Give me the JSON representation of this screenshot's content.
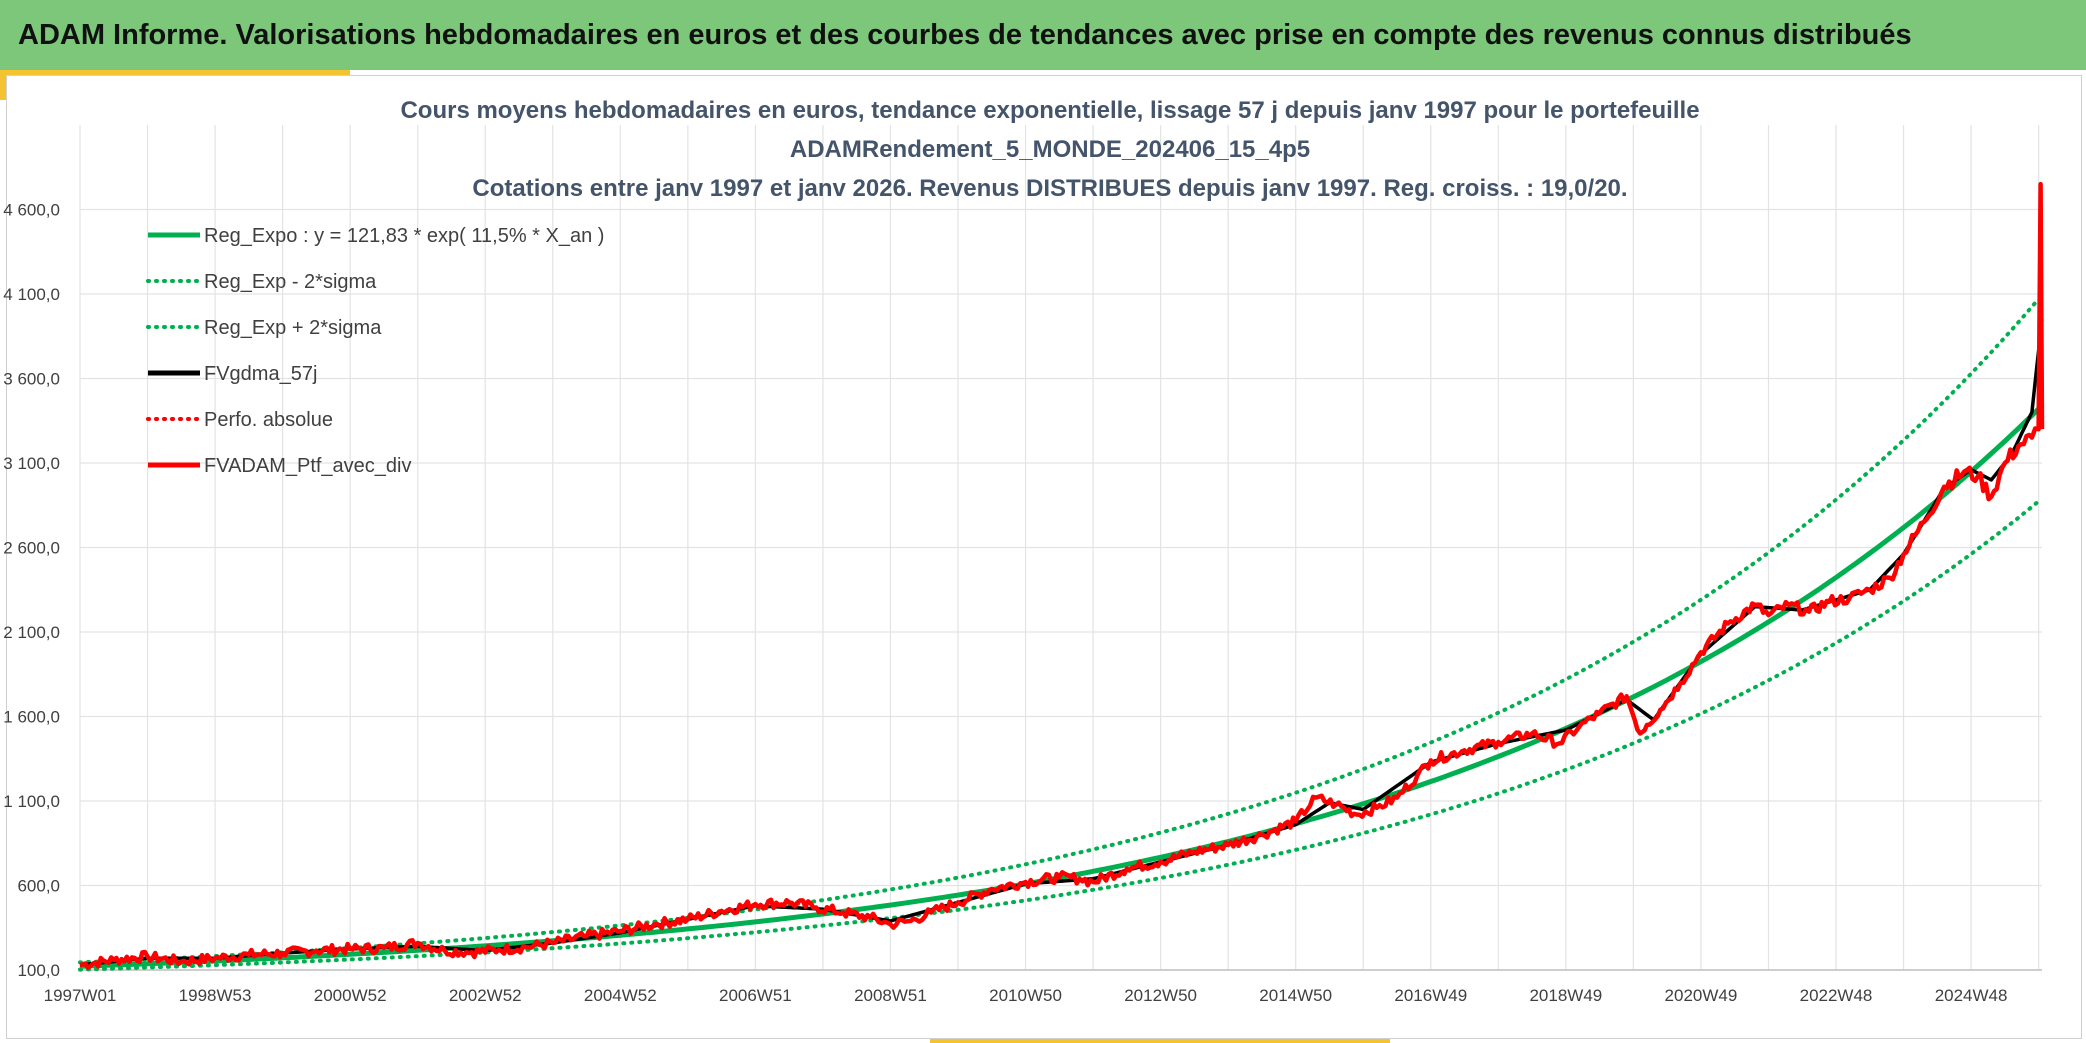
{
  "header": {
    "title": "ADAM Informe. Valorisations hebdomadaires en euros et des courbes de tendances avec prise en compte des revenus connus distribués"
  },
  "colors": {
    "banner": "#7dc77b",
    "accent": "#f4c430",
    "trend": "#00b050",
    "smooth": "#000000",
    "portfolio": "#ff0000",
    "title_text": "#44546a"
  },
  "chart_data": {
    "type": "line",
    "title_lines": [
      "Cours moyens hebdomadaires en euros, tendance exponentielle, lissage 57 j depuis janv 1997 pour le portefeuille",
      "ADAMRendement_5_MONDE_202406_15_4p5",
      "Cotations entre janv 1997 et janv 2026. Revenus DISTRIBUES depuis janv 1997. Reg. croiss. : 19,0/20."
    ],
    "xlabel": "",
    "ylabel": "",
    "x_tick_labels": [
      "1997W01",
      "1998W53",
      "2000W52",
      "2002W52",
      "2004W52",
      "2006W51",
      "2008W51",
      "2010W50",
      "2012W50",
      "2014W50",
      "2016W49",
      "2018W49",
      "2020W49",
      "2022W48",
      "2024W48"
    ],
    "x_tick_years": [
      1997,
      1999,
      2001,
      2003,
      2005,
      2007,
      2009,
      2011,
      2013,
      2015,
      2017,
      2019,
      2021,
      2023,
      2025
    ],
    "y_tick_labels": [
      "100,0",
      "600,0",
      "1 100,0",
      "1 600,0",
      "2 100,0",
      "2 600,0",
      "3 100,0",
      "3 600,0",
      "4 100,0",
      "4 600,0"
    ],
    "y_ticks": [
      100,
      600,
      1100,
      1600,
      2100,
      2600,
      3100,
      3600,
      4100,
      4600
    ],
    "xlim": [
      1997.0,
      2026.05
    ],
    "ylim": [
      100,
      5100
    ],
    "grid": true,
    "legend_position": "top-left",
    "legend": [
      {
        "label": "Reg_Expo : y = 121,83 * exp( 11,5% *  X_an )",
        "color": "#00b050",
        "style": "solid"
      },
      {
        "label": "Reg_Exp - 2*sigma",
        "color": "#00b050",
        "style": "dotted"
      },
      {
        "label": "Reg_Exp + 2*sigma",
        "color": "#00b050",
        "style": "dotted"
      },
      {
        "label": "FVgdma_57j",
        "color": "#000000",
        "style": "solid"
      },
      {
        "label": "Perfo. absolue",
        "color": "#ff0000",
        "style": "dotted"
      },
      {
        "label": "FVADAM_Ptf_avec_div",
        "color": "#ff0000",
        "style": "solid"
      }
    ],
    "regression": {
      "a": 121.83,
      "rate": 0.115,
      "lower_factor": 0.84,
      "upper_factor": 1.19
    },
    "series": [
      {
        "name": "FVADAM_Ptf_avec_div",
        "x": [
          1997.0,
          1997.5,
          1998.0,
          1998.5,
          1999.0,
          1999.5,
          2000.0,
          2000.5,
          2001.0,
          2001.5,
          2002.0,
          2002.4,
          2002.8,
          2003.2,
          2003.6,
          2004.0,
          2004.5,
          2005.0,
          2005.5,
          2006.0,
          2006.5,
          2007.0,
          2007.5,
          2007.9,
          2008.3,
          2008.7,
          2009.0,
          2009.3,
          2009.6,
          2010.0,
          2010.5,
          2011.0,
          2011.5,
          2011.8,
          2012.0,
          2012.5,
          2013.0,
          2013.5,
          2014.0,
          2014.5,
          2015.0,
          2015.3,
          2015.6,
          2015.9,
          2016.2,
          2016.5,
          2016.8,
          2017.0,
          2017.5,
          2018.0,
          2018.5,
          2018.9,
          2019.2,
          2019.5,
          2019.9,
          2020.1,
          2020.2,
          2020.4,
          2020.7,
          2021.0,
          2021.4,
          2021.8,
          2022.0,
          2022.3,
          2022.6,
          2022.9,
          2023.2,
          2023.5,
          2023.8,
          2024.0,
          2024.3,
          2024.6,
          2024.9,
          2025.1,
          2025.3,
          2025.5,
          2025.7,
          2025.9,
          2026.0,
          2026.03,
          2026.05
        ],
        "values": [
          130,
          160,
          180,
          150,
          170,
          190,
          200,
          215,
          225,
          230,
          260,
          215,
          205,
          220,
          235,
          260,
          300,
          330,
          370,
          400,
          450,
          490,
          500,
          470,
          440,
          410,
          370,
          390,
          440,
          500,
          580,
          620,
          650,
          640,
          620,
          700,
          740,
          800,
          840,
          900,
          980,
          1120,
          1080,
          1020,
          1060,
          1120,
          1250,
          1340,
          1400,
          1450,
          1500,
          1440,
          1540,
          1620,
          1720,
          1500,
          1550,
          1640,
          1800,
          1980,
          2150,
          2260,
          2200,
          2260,
          2220,
          2280,
          2300,
          2350,
          2420,
          2560,
          2750,
          2960,
          3050,
          3020,
          2900,
          3100,
          3200,
          3250,
          3300,
          4750,
          3300
        ]
      },
      {
        "name": "FVgdma_57j",
        "x": [
          1997.0,
          1998.0,
          1999.0,
          2000.0,
          2001.0,
          2002.0,
          2003.0,
          2004.0,
          2005.0,
          2006.0,
          2007.0,
          2008.0,
          2009.0,
          2010.0,
          2011.0,
          2012.0,
          2013.0,
          2014.0,
          2015.0,
          2015.5,
          2016.0,
          2017.0,
          2018.0,
          2019.0,
          2019.9,
          2020.3,
          2021.0,
          2021.8,
          2022.5,
          2023.5,
          2024.0,
          2024.6,
          2025.0,
          2025.3,
          2025.6,
          2025.9,
          2026.05
        ],
        "values": [
          130,
          170,
          170,
          200,
          225,
          240,
          215,
          260,
          320,
          400,
          480,
          460,
          390,
          500,
          610,
          640,
          740,
          840,
          960,
          1090,
          1050,
          1330,
          1440,
          1520,
          1700,
          1580,
          1970,
          2250,
          2230,
          2350,
          2560,
          2950,
          3060,
          3000,
          3150,
          3400,
          3950
        ]
      }
    ]
  }
}
